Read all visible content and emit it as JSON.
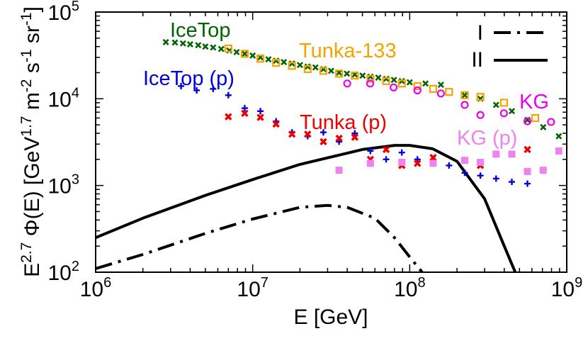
{
  "chart_data": {
    "type": "scatter",
    "xscale": "log",
    "yscale": "log",
    "xlim": [
      1000000,
      1000000000
    ],
    "ylim": [
      100,
      100000
    ],
    "xlabel": "E [GeV]",
    "ylabel": "E^{2.7} Φ(E) [GeV^{1.7} m^{-2} s^{-1} sr^{-1}]",
    "x_ticks": [
      {
        "value": 1000000,
        "base": "10",
        "exp": "6"
      },
      {
        "value": 10000000,
        "base": "10",
        "exp": "7"
      },
      {
        "value": 100000000,
        "base": "10",
        "exp": "8"
      },
      {
        "value": 1000000000,
        "base": "10",
        "exp": "9"
      }
    ],
    "y_ticks": [
      {
        "value": 100,
        "base": "10",
        "exp": "2"
      },
      {
        "value": 1000,
        "base": "10",
        "exp": "3"
      },
      {
        "value": 10000,
        "base": "10",
        "exp": "4"
      },
      {
        "value": 100000,
        "base": "10",
        "exp": "5"
      }
    ],
    "legend": [
      {
        "label": "I",
        "style": "dash-dot",
        "color": "#000000"
      },
      {
        "label": "II",
        "style": "solid",
        "color": "#000000"
      }
    ],
    "series": [
      {
        "name": "IceTop",
        "marker": "x",
        "color": "#006400",
        "x": [
          2800000.0,
          3200000.0,
          3600000.0,
          4000000.0,
          4500000.0,
          5000000.0,
          5600000.0,
          6300000.0,
          7100000.0,
          7900000.0,
          8900000.0,
          10000000.0,
          11200000.0,
          12600000.0,
          14100000.0,
          15800000.0,
          17800000.0,
          20000000.0,
          22400000.0,
          25100000.0,
          28200000.0,
          31600000.0,
          35500000.0,
          39800000.0,
          44700000.0,
          50100000.0,
          56200000.0,
          63100000.0,
          70800000.0,
          79400000.0,
          89100000.0,
          100000000.0,
          126000000.0,
          158000000.0,
          224000000.0,
          282000000.0,
          355000000.0,
          447000000.0,
          562000000.0,
          708000000.0,
          890000000.0
        ],
        "y": [
          45000,
          44500,
          43500,
          42500,
          41500,
          40000,
          39000,
          37500,
          36000,
          34500,
          33000,
          31500,
          30000,
          28500,
          27500,
          26500,
          25500,
          24500,
          23500,
          23000,
          22000,
          21000,
          20000,
          19500,
          19000,
          18500,
          18000,
          17500,
          17000,
          16500,
          16000,
          15500,
          15000,
          14500,
          11000,
          10000,
          8500,
          7200,
          5700,
          4700,
          3700
        ]
      },
      {
        "name": "Tunka-133",
        "marker": "open-square",
        "color": "#F5A300",
        "x": [
          7000000.0,
          8900000.0,
          11200000.0,
          14100000.0,
          17800000.0,
          22400000.0,
          28200000.0,
          35500000.0,
          44700000.0,
          56200000.0,
          70800000.0,
          89100000.0,
          112000000.0,
          141000000.0,
          178000000.0,
          224000000.0,
          282000000.0,
          398000000.0,
          630000000.0
        ],
        "y": [
          38000,
          33000,
          29000,
          26000,
          24000,
          22000,
          21000,
          19500,
          18500,
          17000,
          16000,
          15000,
          14000,
          13000,
          12000,
          11000,
          10500,
          9000,
          6000
        ]
      },
      {
        "name": "IceTop (p)",
        "marker": "plus",
        "color": "#0000DD",
        "x": [
          3500000.0,
          4400000.0,
          5600000.0,
          7000000.0,
          8900000.0,
          11200000.0,
          14100000.0,
          17800000.0,
          22400000.0,
          28200000.0,
          35500000.0,
          44700000.0,
          56200000.0,
          70800000.0,
          89100000.0,
          112000000.0,
          141000000.0,
          178000000.0,
          224000000.0,
          282000000.0,
          355000000.0,
          447000000.0,
          562000000.0
        ],
        "y": [
          14000,
          12500,
          13000,
          11000,
          7800,
          7200,
          5500,
          4100,
          3700,
          4100,
          3200,
          4000,
          2500,
          2000,
          2400,
          2000,
          1900,
          1700,
          1400,
          1300,
          1200,
          1100,
          1050
        ]
      },
      {
        "name": "Tunka (p)",
        "marker": "filled-x",
        "color": "#EE0000",
        "x": [
          7000000.0,
          8900000.0,
          11200000.0,
          14100000.0,
          17800000.0,
          22400000.0,
          28200000.0,
          35500000.0,
          44700000.0,
          56200000.0,
          70800000.0,
          89100000.0,
          112000000.0,
          141000000.0,
          282000000.0,
          562000000.0
        ],
        "y": [
          6200,
          6800,
          6100,
          5100,
          3900,
          3900,
          3200,
          3500,
          3600,
          2000,
          2600,
          1700,
          1800,
          2100,
          1700,
          2600
        ]
      },
      {
        "name": "KG",
        "marker": "open-circle",
        "color": "#EE00EE",
        "x": [
          40000000.0,
          56000000.0,
          79000000.0,
          112000000.0,
          158000000.0,
          224000000.0,
          282000000.0,
          398000000.0,
          562000000.0,
          794000000.0
        ],
        "y": [
          15000,
          15000,
          13500,
          12500,
          11500,
          8500,
          6500,
          6800,
          5500,
          5400
        ]
      },
      {
        "name": "KG (p)",
        "marker": "filled-square",
        "color": "#EE82EE",
        "x": [
          35500000.0,
          56200000.0,
          89100000.0,
          141000000.0,
          224000000.0,
          282000000.0,
          355000000.0,
          447000000.0,
          562000000.0,
          708000000.0,
          890000000.0
        ],
        "y": [
          1500,
          1800,
          1850,
          1800,
          1950,
          1850,
          2300,
          2300,
          1450,
          1500,
          2500
        ]
      }
    ],
    "lines": [
      {
        "name": "II",
        "style": "solid",
        "color": "#000000",
        "x": [
          1000000.0,
          2000000.0,
          5000000.0,
          10000000.0,
          20000000.0,
          50000000.0,
          80000000.0,
          100000000.0,
          140000000.0,
          200000000.0,
          300000000.0,
          400000000.0,
          470000000.0
        ],
        "y": [
          250,
          420,
          770,
          1170,
          1750,
          2600,
          2900,
          2900,
          2650,
          1900,
          700,
          200,
          100
        ]
      },
      {
        "name": "I",
        "style": "dash-dot",
        "color": "#000000",
        "x": [
          1000000.0,
          2000000.0,
          5000000.0,
          10000000.0,
          20000000.0,
          30000000.0,
          40000000.0,
          60000000.0,
          80000000.0,
          100000000.0,
          120000000.0
        ],
        "y": [
          110,
          160,
          280,
          410,
          560,
          590,
          560,
          420,
          250,
          150,
          100
        ]
      }
    ],
    "annotations": [
      {
        "text": "IceTop",
        "series": "IceTop",
        "color": "#006400"
      },
      {
        "text": "Tunka-133",
        "series": "Tunka-133",
        "color": "#F5A300"
      },
      {
        "text": "IceTop (p)",
        "series": "IceTop (p)",
        "color": "#0000DD"
      },
      {
        "text": "Tunka (p)",
        "series": "Tunka (p)",
        "color": "#EE0000"
      },
      {
        "text": "KG",
        "series": "KG",
        "color": "#EE00EE"
      },
      {
        "text": "KG (p)",
        "series": "KG (p)",
        "color": "#EE82EE"
      }
    ]
  }
}
